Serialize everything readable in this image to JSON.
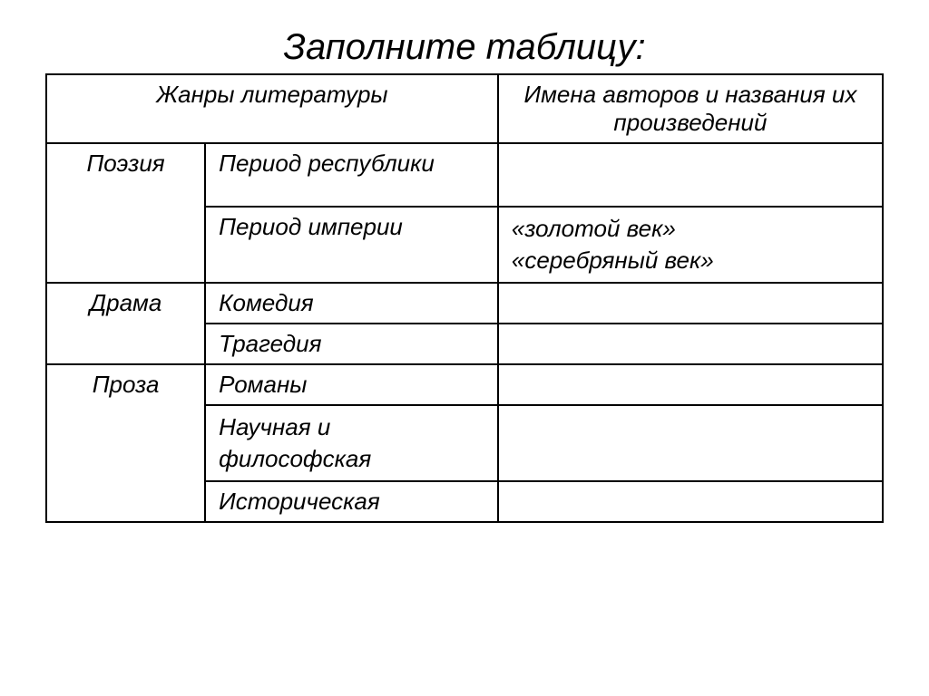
{
  "title": "Заполните таблицу:",
  "headers": {
    "genres": "Жанры литературы",
    "authors": "Имена авторов и названия их произведений"
  },
  "rows": {
    "poetry": {
      "label": "Поэзия",
      "republic": {
        "sub": "Период республики",
        "val": ""
      },
      "empire": {
        "sub": "Период империи",
        "val_line1": "«золотой век»",
        "val_line2": "«серебряный век»"
      }
    },
    "drama": {
      "label": "Драма",
      "comedy": {
        "sub": "Комедия",
        "val": ""
      },
      "tragedy": {
        "sub": "Трагедия",
        "val": ""
      }
    },
    "prose": {
      "label": "Проза",
      "novels": {
        "sub": "Романы",
        "val": ""
      },
      "scientific": {
        "sub_line1": "Научная и",
        "sub_line2": "философская",
        "val": ""
      },
      "historical": {
        "sub": "Историческая",
        "val": ""
      }
    }
  }
}
